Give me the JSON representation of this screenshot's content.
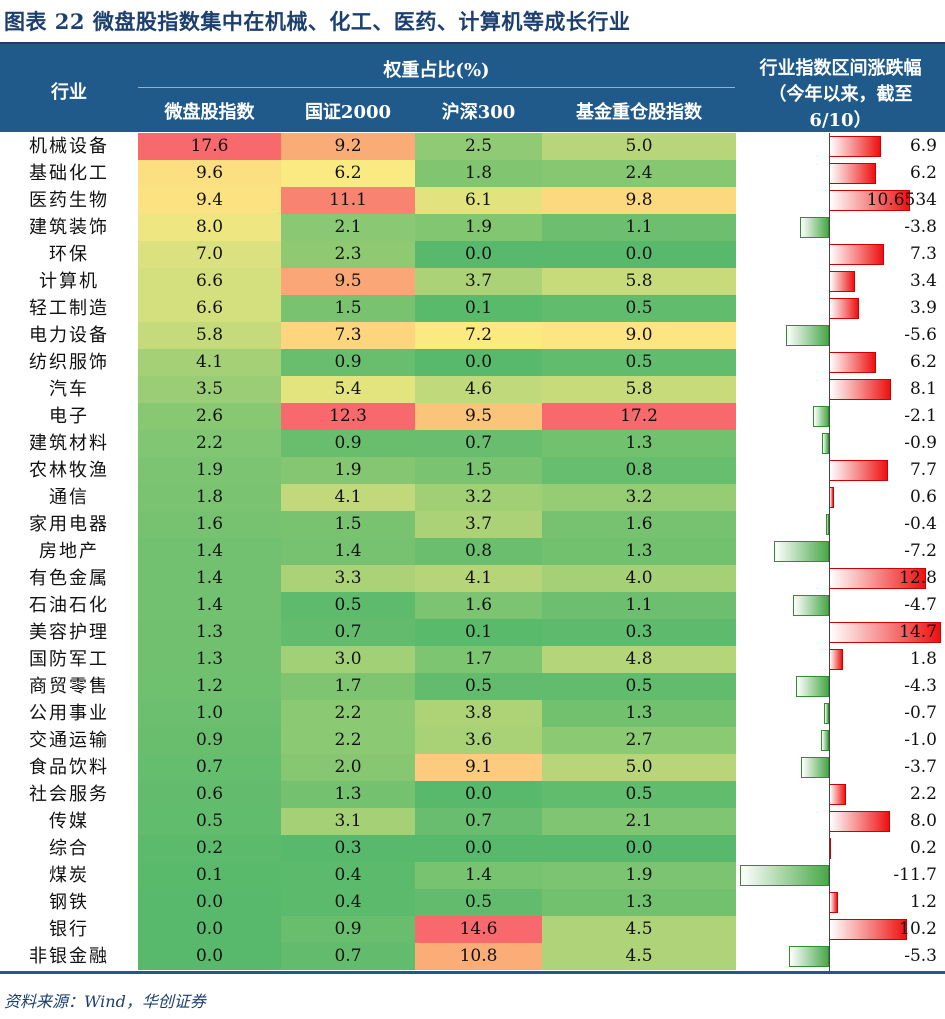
{
  "title": "图表 22   微盘股指数集中在机械、化工、医药、计算机等成长行业",
  "header": {
    "industry": "行业",
    "weight_group": "权重占比(%)",
    "columns": [
      "微盘股指数",
      "国证2000",
      "沪深300",
      "基金重仓股指数"
    ],
    "change_line1": "行业指数区间涨跌幅",
    "change_line2": "（今年以来，截至",
    "change_line3": "6/10）"
  },
  "source": "资料来源：Wind，华创证券",
  "chart_data": {
    "type": "table",
    "title": "微盘股指数集中在机械、化工、医药、计算机等成长行业",
    "rows": [
      {
        "industry": "机械设备",
        "weights": [
          "17.6",
          "9.2",
          "2.5",
          "5.0"
        ],
        "change": 6.9,
        "change_label": "6.9"
      },
      {
        "industry": "基础化工",
        "weights": [
          "9.6",
          "6.2",
          "1.8",
          "2.4"
        ],
        "change": 6.2,
        "change_label": "6.2"
      },
      {
        "industry": "医药生物",
        "weights": [
          "9.4",
          "11.1",
          "6.1",
          "9.8"
        ],
        "change": 10.6534,
        "change_label": "10.6534"
      },
      {
        "industry": "建筑装饰",
        "weights": [
          "8.0",
          "2.1",
          "1.9",
          "1.1"
        ],
        "change": -3.8,
        "change_label": "-3.8"
      },
      {
        "industry": "环保",
        "weights": [
          "7.0",
          "2.3",
          "0.0",
          "0.0"
        ],
        "change": 7.3,
        "change_label": "7.3"
      },
      {
        "industry": "计算机",
        "weights": [
          "6.6",
          "9.5",
          "3.7",
          "5.8"
        ],
        "change": 3.4,
        "change_label": "3.4"
      },
      {
        "industry": "轻工制造",
        "weights": [
          "6.6",
          "1.5",
          "0.1",
          "0.5"
        ],
        "change": 3.9,
        "change_label": "3.9"
      },
      {
        "industry": "电力设备",
        "weights": [
          "5.8",
          "7.3",
          "7.2",
          "9.0"
        ],
        "change": -5.6,
        "change_label": "-5.6"
      },
      {
        "industry": "纺织服饰",
        "weights": [
          "4.1",
          "0.9",
          "0.0",
          "0.5"
        ],
        "change": 6.2,
        "change_label": "6.2"
      },
      {
        "industry": "汽车",
        "weights": [
          "3.5",
          "5.4",
          "4.6",
          "5.8"
        ],
        "change": 8.1,
        "change_label": "8.1"
      },
      {
        "industry": "电子",
        "weights": [
          "2.6",
          "12.3",
          "9.5",
          "17.2"
        ],
        "change": -2.1,
        "change_label": "-2.1"
      },
      {
        "industry": "建筑材料",
        "weights": [
          "2.2",
          "0.9",
          "0.7",
          "1.3"
        ],
        "change": -0.9,
        "change_label": "-0.9"
      },
      {
        "industry": "农林牧渔",
        "weights": [
          "1.9",
          "1.9",
          "1.5",
          "0.8"
        ],
        "change": 7.7,
        "change_label": "7.7"
      },
      {
        "industry": "通信",
        "weights": [
          "1.8",
          "4.1",
          "3.2",
          "3.2"
        ],
        "change": 0.6,
        "change_label": "0.6"
      },
      {
        "industry": "家用电器",
        "weights": [
          "1.6",
          "1.5",
          "3.7",
          "1.6"
        ],
        "change": -0.4,
        "change_label": "-0.4"
      },
      {
        "industry": "房地产",
        "weights": [
          "1.4",
          "1.4",
          "0.8",
          "1.3"
        ],
        "change": -7.2,
        "change_label": "-7.2"
      },
      {
        "industry": "有色金属",
        "weights": [
          "1.4",
          "3.3",
          "4.1",
          "4.0"
        ],
        "change": 12.8,
        "change_label": "12.8"
      },
      {
        "industry": "石油石化",
        "weights": [
          "1.4",
          "0.5",
          "1.6",
          "1.1"
        ],
        "change": -4.7,
        "change_label": "-4.7"
      },
      {
        "industry": "美容护理",
        "weights": [
          "1.3",
          "0.7",
          "0.1",
          "0.3"
        ],
        "change": 14.7,
        "change_label": "14.7"
      },
      {
        "industry": "国防军工",
        "weights": [
          "1.3",
          "3.0",
          "1.7",
          "4.8"
        ],
        "change": 1.8,
        "change_label": "1.8"
      },
      {
        "industry": "商贸零售",
        "weights": [
          "1.2",
          "1.7",
          "0.5",
          "0.5"
        ],
        "change": -4.3,
        "change_label": "-4.3"
      },
      {
        "industry": "公用事业",
        "weights": [
          "1.0",
          "2.2",
          "3.8",
          "1.3"
        ],
        "change": -0.7,
        "change_label": "-0.7"
      },
      {
        "industry": "交通运输",
        "weights": [
          "0.9",
          "2.2",
          "3.6",
          "2.7"
        ],
        "change": -1.0,
        "change_label": "-1.0"
      },
      {
        "industry": "食品饮料",
        "weights": [
          "0.7",
          "2.0",
          "9.1",
          "5.0"
        ],
        "change": -3.7,
        "change_label": "-3.7"
      },
      {
        "industry": "社会服务",
        "weights": [
          "0.6",
          "1.3",
          "0.0",
          "0.5"
        ],
        "change": 2.2,
        "change_label": "2.2"
      },
      {
        "industry": "传媒",
        "weights": [
          "0.5",
          "3.1",
          "0.7",
          "2.1"
        ],
        "change": 8.0,
        "change_label": "8.0"
      },
      {
        "industry": "综合",
        "weights": [
          "0.2",
          "0.3",
          "0.0",
          "0.0"
        ],
        "change": 0.2,
        "change_label": "0.2"
      },
      {
        "industry": "煤炭",
        "weights": [
          "0.1",
          "0.4",
          "1.4",
          "1.9"
        ],
        "change": -11.7,
        "change_label": "-11.7"
      },
      {
        "industry": "钢铁",
        "weights": [
          "0.0",
          "0.4",
          "0.5",
          "1.3"
        ],
        "change": 1.2,
        "change_label": "1.2"
      },
      {
        "industry": "银行",
        "weights": [
          "0.0",
          "0.9",
          "14.6",
          "4.5"
        ],
        "change": 10.2,
        "change_label": "10.2"
      },
      {
        "industry": "非银金融",
        "weights": [
          "0.0",
          "0.7",
          "10.8",
          "4.5"
        ],
        "change": -5.3,
        "change_label": "-5.3"
      }
    ]
  }
}
